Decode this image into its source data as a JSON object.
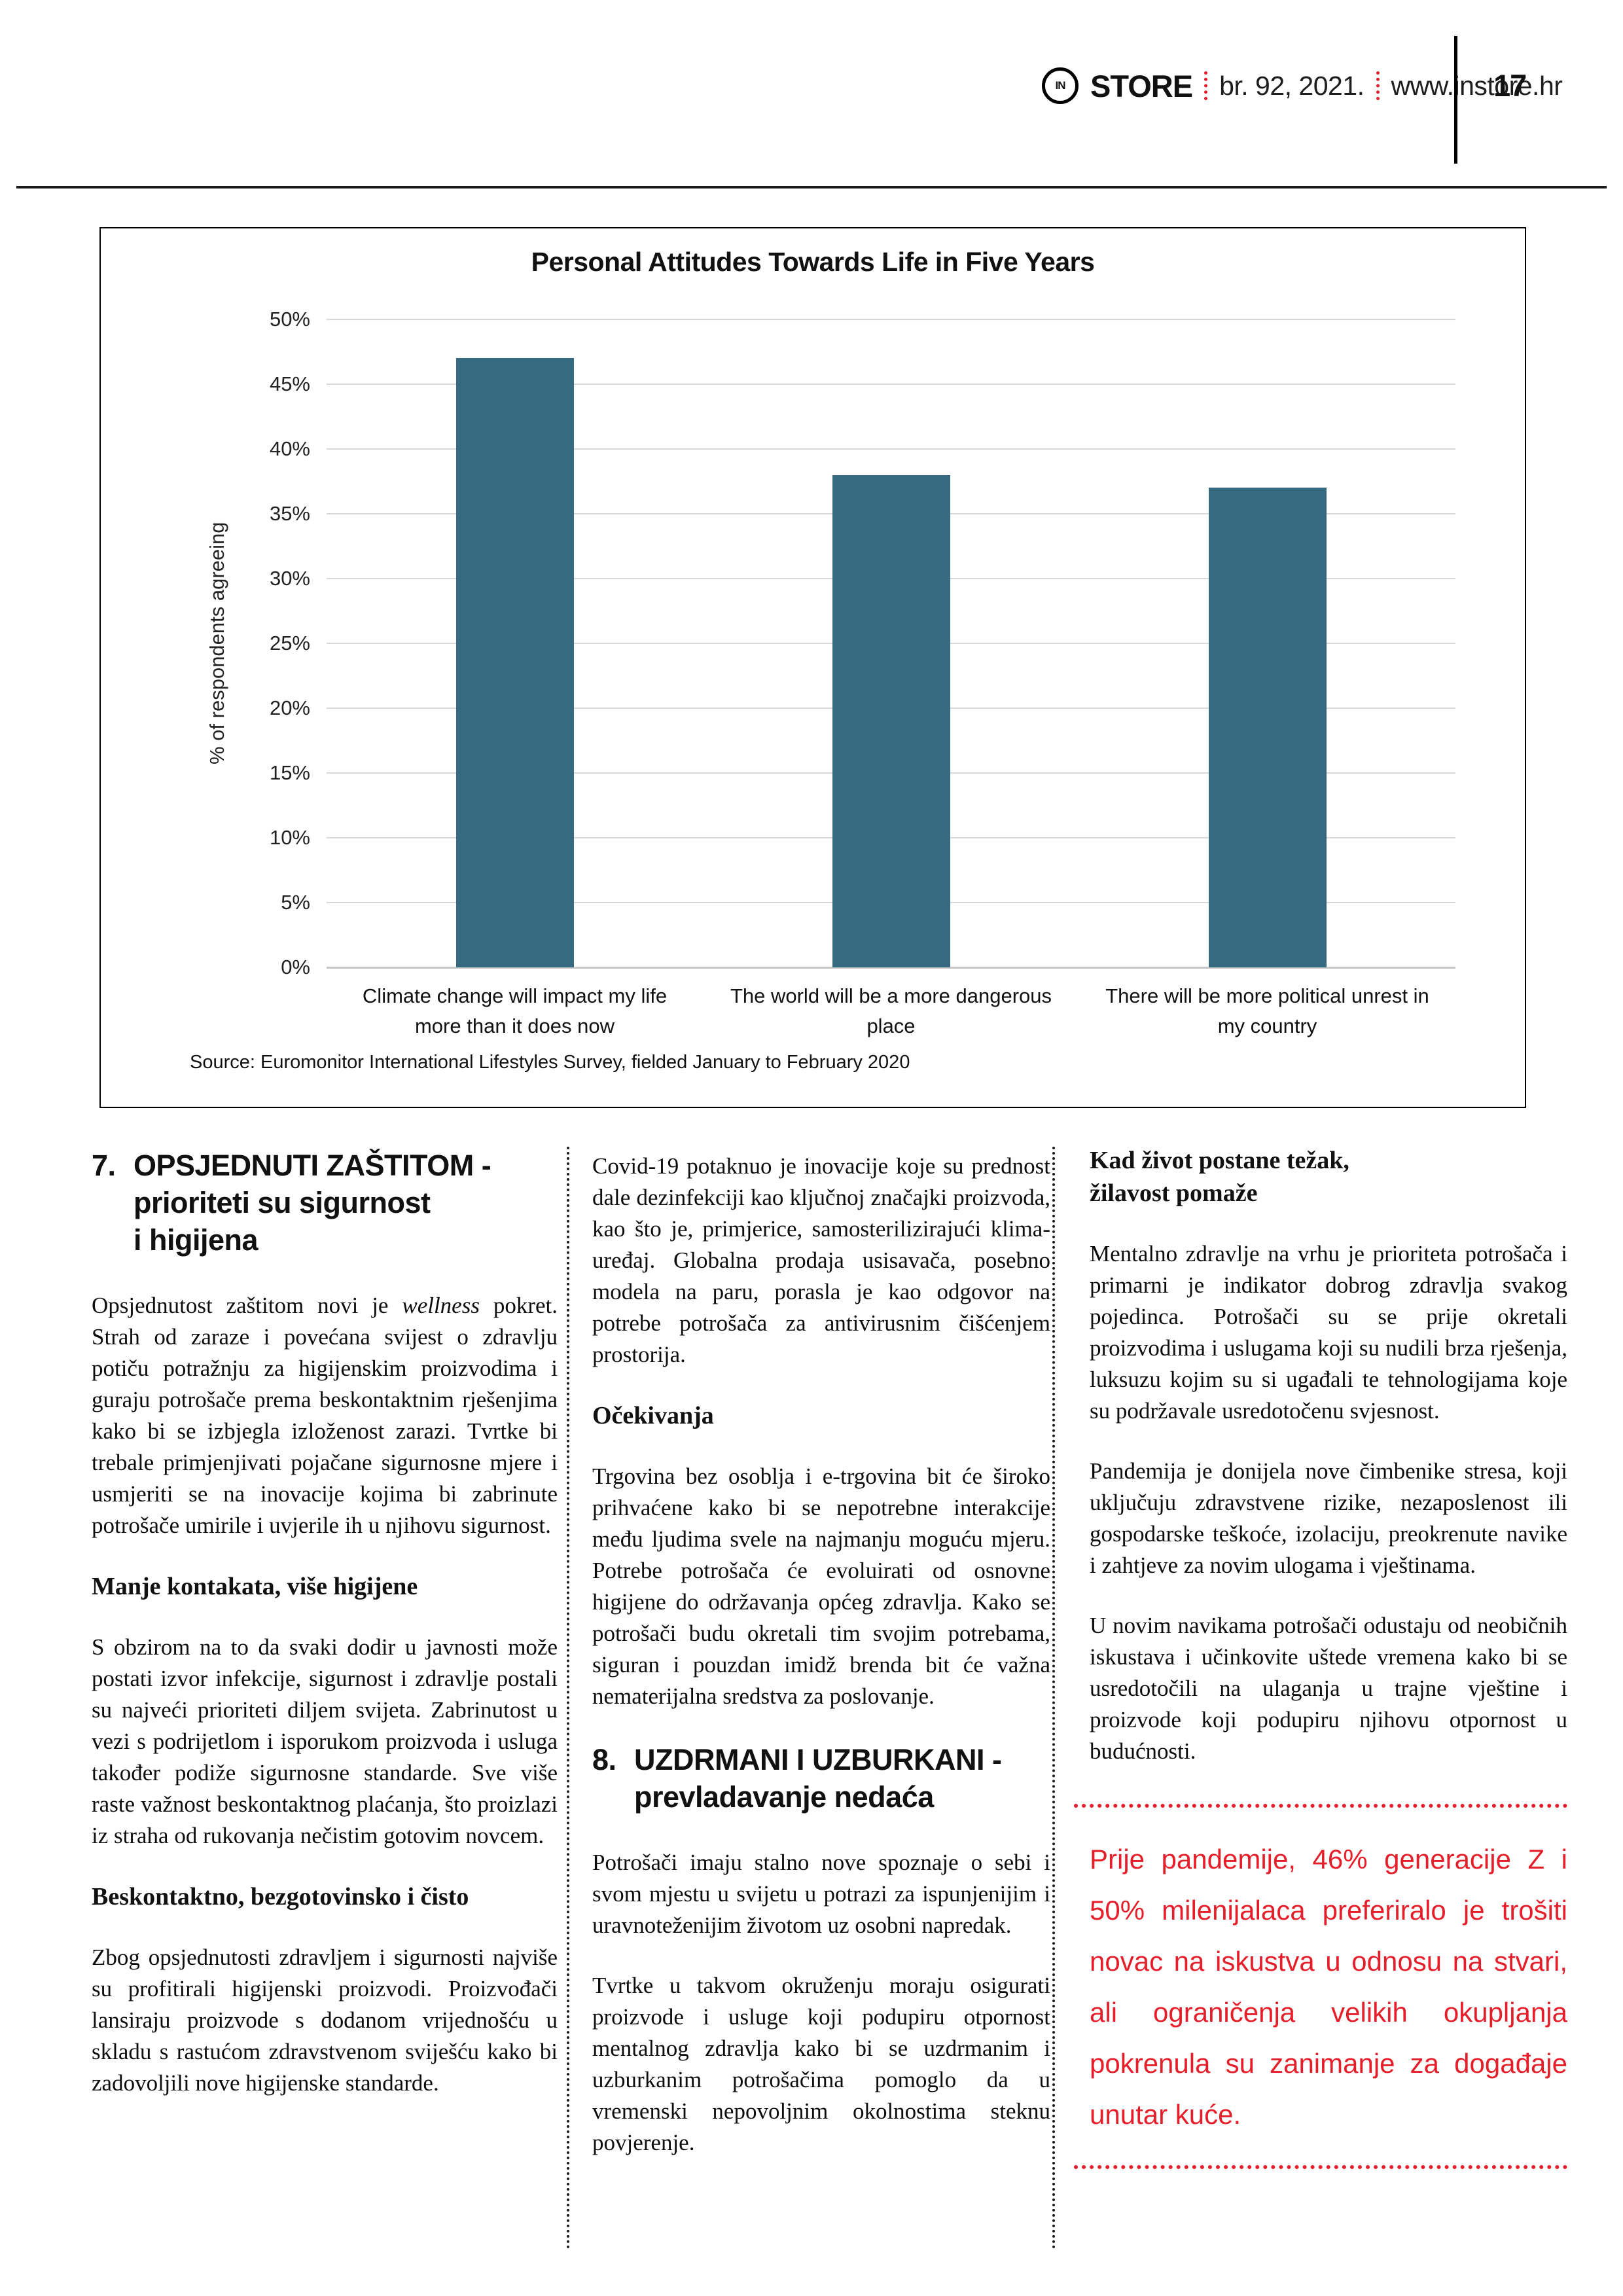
{
  "header": {
    "logo_in": "IN",
    "logo_store": "STORE",
    "issue": "br. 92, 2021.",
    "site": "www.instore.hr",
    "page_number": "17"
  },
  "colors": {
    "red": "#e51e2a",
    "bar": "#366a80",
    "grid": "#d9d9d9"
  },
  "chart_data": {
    "type": "bar",
    "title": "Personal Attitudes Towards Life in Five Years",
    "ylabel": "% of respondents agreeing",
    "categories": [
      "Climate change will impact my life\nmore than it does now",
      "The world will be a more dangerous\nplace",
      "There will be more political unrest in\nmy country"
    ],
    "values": [
      47,
      38,
      37
    ],
    "ylim": [
      0,
      50
    ],
    "ytick_step": 5,
    "grid": true,
    "legend": false,
    "bar_color": "#366a80",
    "source": "Source: Euromonitor International Lifestyles Survey, fielded January to February 2020"
  },
  "columns": {
    "col1": {
      "heading_num": "7.",
      "heading": "OPSJEDNUTI ZAŠTITOM -\nprioriteti su sigurnost\ni higijena",
      "p1_pre": "Opsjednutost zaštitom novi je ",
      "p1_italic": "wellness",
      "p1_post": " pokret. Strah od zaraze i povećana svijest o zdravlju potiču potražnju za higijenskim proizvodima i guraju potrošače prema beskontaktnim rješenjima kako bi se izbjegla izloženost zarazi. Tvrtke bi trebale primjenjivati pojačane sigurnosne mjere i usmjeriti se na inovacije kojima bi zabrinute potrošače umirile i uvjerile ih u njihovu sigurnost.",
      "sub1": "Manje kontakata, više higijene",
      "p2": "S obzirom na to da svaki dodir u javnosti može postati izvor infekcije, sigurnost i zdravlje postali su najveći prioriteti diljem svijeta. Zabrinutost u vezi s podrijetlom i isporukom proizvoda i usluga također podiže sigurnosne standarde. Sve više raste važnost beskontaktnog plaćanja, što proizlazi iz straha od rukovanja nečistim gotovim novcem.",
      "sub2": "Beskontaktno, bezgotovinsko i čisto",
      "p3": "Zbog opsjednutosti zdravljem i sigurnosti najviše su profitirali higijenski proizvodi. Proizvođači lansiraju proizvode s dodanom vrijednošću u skladu s rastućom zdravstvenom sviješću kako bi zadovoljili nove higijenske standarde."
    },
    "col2": {
      "p1": "Covid-19 potaknuo je inovacije koje su prednost dale dezinfekciji kao ključnoj značajki proizvoda, kao što je, primjerice, samosterilizirajući klima-uređaj. Globalna prodaja usisavača, posebno modela na paru, porasla je kao odgovor na potrebe potrošača za antivirusnim čišćenjem prostorija.",
      "sub1": "Očekivanja",
      "p2": "Trgovina bez osoblja i e-trgovina bit će široko prihvaćene kako bi se nepotrebne interakcije među ljudima svele na najmanju moguću mjeru. Potrebe potrošača će evoluirati od osnovne higijene do održavanja općeg zdravlja. Kako se potrošači budu okretali tim svojim potrebama, siguran i pouzdan imidž brenda bit će važna nematerijalna sredstva za poslovanje.",
      "heading_num": "8.",
      "heading": "UZDRMANI I UZBURKANI -\nprevladavanje nedaća",
      "p3": "Potrošači imaju stalno nove spoznaje o sebi i svom mjestu u svijetu u potrazi za ispunjenijim i uravnoteženijim životom uz osobni napredak.",
      "p4": "Tvrtke u takvom okruženju moraju osigurati proizvode i usluge koji podupiru otpornost mentalnog zdravlja kako bi se uzdrmanim i uzburkanim potrošačima pomoglo da u vremenski nepovoljnim okolnostima steknu povjerenje."
    },
    "col3": {
      "heading": "Kad život postane težak,\nžilavost pomaže",
      "p1": "Mentalno zdravlje na vrhu je prioriteta potrošača i primarni je indikator dobrog zdravlja svakog pojedinca. Potrošači su se prije okretali proizvodima i uslugama koji su nudili brza rješenja, luksuzu kojim su si ugađali te tehnologijama koje su podržavale usredotočenu svjesnost.",
      "p2": "Pandemija je donijela nove čimbenike stresa, koji uključuju zdravstvene rizike, nezaposlenost ili gospodarske teškoće, izolaciju, preokrenute navike i zahtjeve za novim ulogama i vještinama.",
      "p3": "U novim navikama potrošači odustaju od neobičnih iskustava i učinkovite uštede vremena kako bi se usredotočili na ulaganja u trajne vještine i proizvode koji podupiru njihovu otpornost u budućnosti.",
      "callout": "Prije pandemije, 46% generacije Z i 50% milenijalaca preferiralo je trošiti novac na iskustva u odnosu na stvari, ali ograničenja velikih okupljanja pokrenula su zanimanje za događaje unutar kuće."
    }
  }
}
